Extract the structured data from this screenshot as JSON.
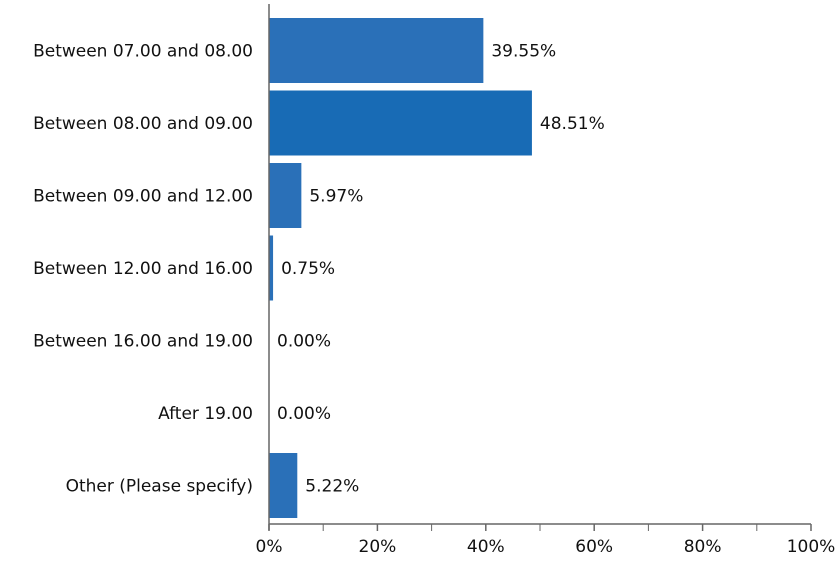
{
  "chart_data": {
    "type": "bar",
    "orientation": "horizontal",
    "categories": [
      "Between 07.00 and 08.00",
      "Between 08.00 and 09.00",
      "Between 09.00 and 12.00",
      "Between 12.00 and 16.00",
      "Between 16.00 and 19.00",
      "After 19.00",
      "Other (Please specify)"
    ],
    "values": [
      39.55,
      48.51,
      5.97,
      0.75,
      0.0,
      0.0,
      5.22
    ],
    "data_labels": [
      "39.55%",
      "48.51%",
      "5.97%",
      "0.75%",
      "0.00%",
      "0.00%",
      "5.22%"
    ],
    "x_ticks": [
      0,
      20,
      40,
      60,
      80,
      100
    ],
    "x_tick_labels": [
      "0%",
      "20%",
      "40%",
      "60%",
      "80%",
      "100%"
    ],
    "xlim": [
      0,
      100
    ],
    "grid": false,
    "legend": "none",
    "bar_colors": [
      "#2a70b8",
      "#186bb5",
      "#2a70b8",
      "#2a70b8",
      "#2a70b8",
      "#2a70b8",
      "#2a70b8"
    ],
    "axis_color": "#666666"
  }
}
